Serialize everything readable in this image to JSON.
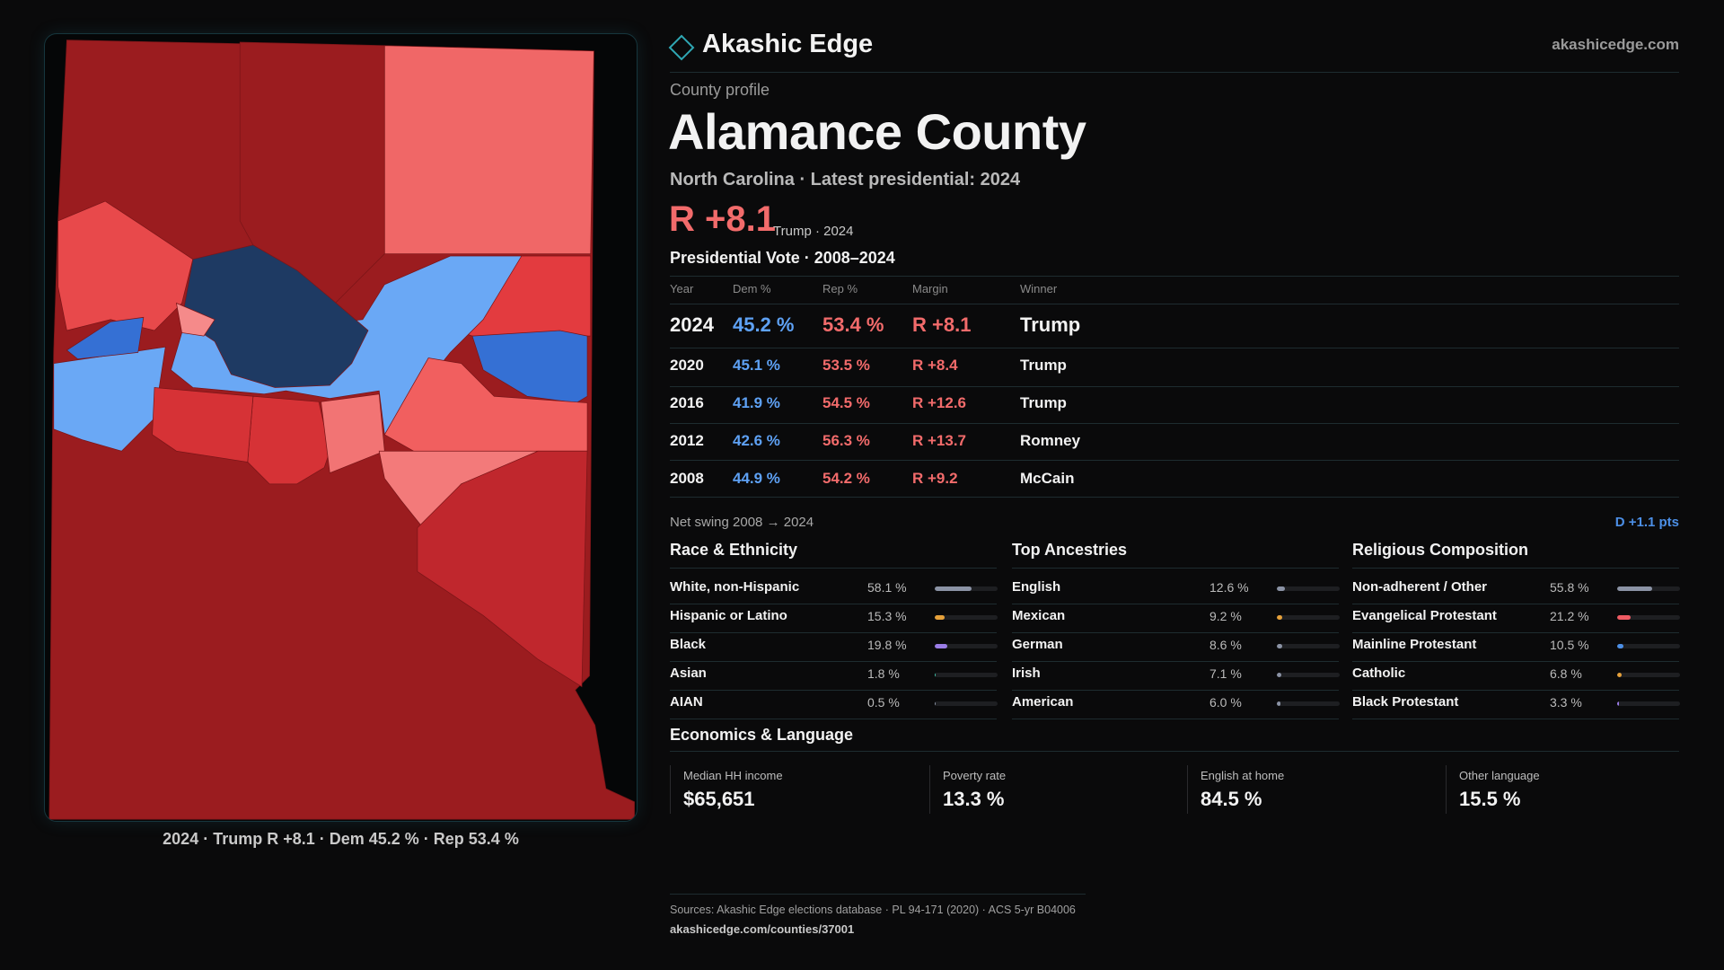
{
  "header": {
    "brand": "Akashic Edge",
    "site": "akashicedge.com"
  },
  "profile": {
    "kicker": "County profile",
    "title": "Alamance County",
    "subtitle": "North Carolina · Latest presidential: 2024",
    "margin": "R +8.1",
    "margin_note": "Trump · 2024"
  },
  "map": {
    "caption": "2024 · Trump R +8.1 · Dem 45.2 % · Rep 53.4 %"
  },
  "votes": {
    "title": "Presidential Vote · 2008–2024",
    "columns": [
      "Year",
      "Dem %",
      "Rep %",
      "Margin",
      "Winner"
    ],
    "rows": [
      [
        "2024",
        "45.2 %",
        "53.4 %",
        "R +8.1",
        "Trump"
      ],
      [
        "2020",
        "45.1 %",
        "53.5 %",
        "R +8.4",
        "Trump"
      ],
      [
        "2016",
        "41.9 %",
        "54.5 %",
        "R +12.6",
        "Trump"
      ],
      [
        "2012",
        "42.6 %",
        "56.3 %",
        "R +13.7",
        "Romney"
      ],
      [
        "2008",
        "44.9 %",
        "54.2 %",
        "R +9.2",
        "McCain"
      ]
    ],
    "swing_label": "Net swing 2008 → 2024",
    "swing_value": "D +1.1 pts"
  },
  "demographics": [
    {
      "title": "Race & Ethnicity",
      "xlim": [
        0,
        100
      ],
      "rows": [
        {
          "name": "White, non-Hispanic",
          "value": 58.1,
          "label": "58.1 %",
          "color": "#8b93a5"
        },
        {
          "name": "Hispanic or Latino",
          "value": 15.3,
          "label": "15.3 %",
          "color": "#e6a13a"
        },
        {
          "name": "Black",
          "value": 19.8,
          "label": "19.8 %",
          "color": "#9a7ce6"
        },
        {
          "name": "Asian",
          "value": 1.8,
          "label": "1.8 %",
          "color": "#3fc0a8"
        },
        {
          "name": "AIAN",
          "value": 0.5,
          "label": "0.5 %",
          "color": "#8b93a5"
        }
      ]
    },
    {
      "title": "Top Ancestries",
      "xlim": [
        0,
        100
      ],
      "rows": [
        {
          "name": "English",
          "value": 12.6,
          "label": "12.6 %",
          "color": "#8b93a5"
        },
        {
          "name": "Mexican",
          "value": 9.2,
          "label": "9.2 %",
          "color": "#e6a13a"
        },
        {
          "name": "German",
          "value": 8.6,
          "label": "8.6 %",
          "color": "#8b93a5"
        },
        {
          "name": "Irish",
          "value": 7.1,
          "label": "7.1 %",
          "color": "#8b93a5"
        },
        {
          "name": "American",
          "value": 6.0,
          "label": "6.0 %",
          "color": "#8b93a5"
        }
      ]
    },
    {
      "title": "Religious Composition",
      "xlim": [
        0,
        100
      ],
      "rows": [
        {
          "name": "Non-adherent / Other",
          "value": 55.8,
          "label": "55.8 %",
          "color": "#8b93a5"
        },
        {
          "name": "Evangelical Protestant",
          "value": 21.2,
          "label": "21.2 %",
          "color": "#ef5b63"
        },
        {
          "name": "Mainline Protestant",
          "value": 10.5,
          "label": "10.5 %",
          "color": "#4c8fe6"
        },
        {
          "name": "Catholic",
          "value": 6.8,
          "label": "6.8 %",
          "color": "#e6a13a"
        },
        {
          "name": "Black Protestant",
          "value": 3.3,
          "label": "3.3 %",
          "color": "#9a7ce6"
        }
      ]
    }
  ],
  "economics": {
    "title": "Economics & Language",
    "cards": [
      {
        "label": "Median HH income",
        "value": "$65,651"
      },
      {
        "label": "Poverty rate",
        "value": "13.3 %"
      },
      {
        "label": "English at home",
        "value": "84.5 %"
      },
      {
        "label": "Other language",
        "value": "15.5 %"
      }
    ]
  },
  "footer": {
    "sources": "Sources: Akashic Edge elections database · PL 94-171 (2020) · ACS 5-yr B04006",
    "url": "akashicedge.com/counties/37001"
  }
}
